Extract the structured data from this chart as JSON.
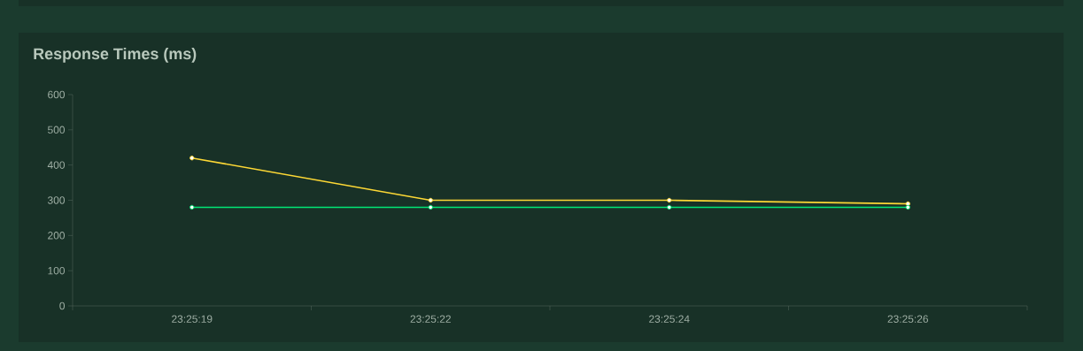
{
  "chart_data": {
    "type": "line",
    "title": "Response Times (ms)",
    "categories": [
      "23:25:19",
      "23:25:22",
      "23:25:24",
      "23:25:26"
    ],
    "series": [
      {
        "color": "#fdd835",
        "values": [
          420,
          300,
          300,
          290
        ]
      },
      {
        "color": "#00e676",
        "values": [
          280,
          280,
          280,
          280
        ]
      }
    ],
    "ylim": [
      0,
      600
    ],
    "yticks": [
      0,
      100,
      200,
      300,
      400,
      500,
      600
    ],
    "marker": "circle",
    "line_style": "solid"
  }
}
